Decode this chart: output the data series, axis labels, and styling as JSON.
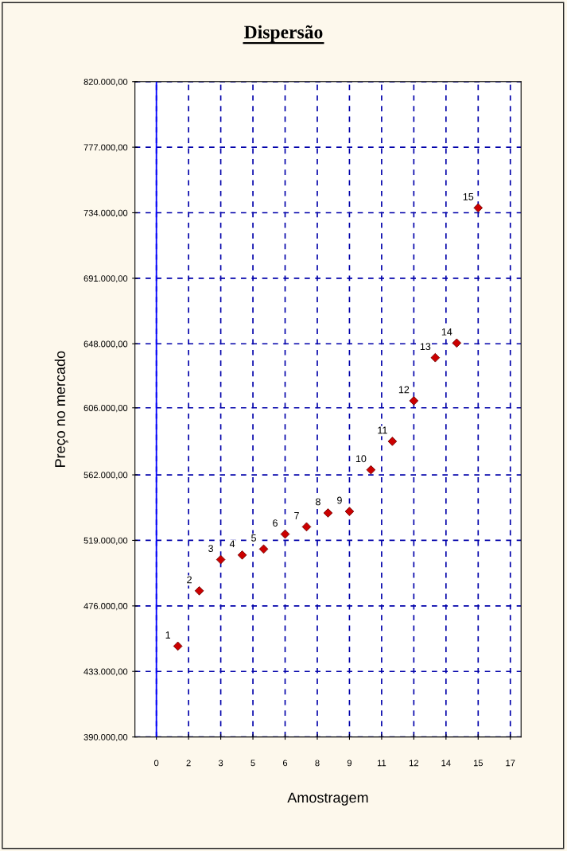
{
  "chart_data": {
    "type": "scatter",
    "title": "Dispersão",
    "xlabel": "Amostragem",
    "ylabel": "Preço no mercado",
    "x": [
      1,
      2,
      3,
      4,
      5,
      6,
      7,
      8,
      9,
      10,
      11,
      12,
      13,
      14,
      15
    ],
    "series": [
      {
        "color": "#cc0000",
        "values": [
          449600,
          485900,
          506400,
          509400,
          513300,
          523100,
          527900,
          537000,
          538000,
          565300,
          584000,
          610600,
          638900,
          648500,
          737200
        ]
      }
    ],
    "marker": "diamond",
    "grid": true,
    "xlim": [
      -1,
      17
    ],
    "xticks": [
      {
        "value": 0,
        "label": "0"
      },
      {
        "value": 1.5,
        "label": "2"
      },
      {
        "value": 3,
        "label": "3"
      },
      {
        "value": 4.5,
        "label": "5"
      },
      {
        "value": 6,
        "label": "6"
      },
      {
        "value": 7.5,
        "label": "8"
      },
      {
        "value": 9,
        "label": "9"
      },
      {
        "value": 10.5,
        "label": "11"
      },
      {
        "value": 12,
        "label": "12"
      },
      {
        "value": 13.5,
        "label": "14"
      },
      {
        "value": 15,
        "label": "15"
      },
      {
        "value": 16.5,
        "label": "17"
      }
    ],
    "ylim": [
      390000,
      820000
    ],
    "yticks": [
      {
        "value": 390000,
        "label": "390.000,00"
      },
      {
        "value": 433000,
        "label": "433.000,00"
      },
      {
        "value": 476000,
        "label": "476.000,00"
      },
      {
        "value": 519000,
        "label": "519.000,00"
      },
      {
        "value": 562000,
        "label": "562.000,00"
      },
      {
        "value": 606000,
        "label": "606.000,00"
      },
      {
        "value": 648000,
        "label": "648.000,00"
      },
      {
        "value": 691000,
        "label": "691.000,00"
      },
      {
        "value": 734000,
        "label": "734.000,00"
      },
      {
        "value": 777000,
        "label": "777.000,00"
      },
      {
        "value": 820000,
        "label": "820.000,00"
      }
    ],
    "ref_lines": [
      {
        "axis": "x",
        "value": 0,
        "label": null,
        "color": "#0000ff",
        "line_style": "solid"
      }
    ],
    "annotations": [
      {
        "text": "1",
        "x": 1,
        "y": 449600
      },
      {
        "text": "2",
        "x": 2,
        "y": 485900
      },
      {
        "text": "3",
        "x": 3,
        "y": 506400
      },
      {
        "text": "4",
        "x": 4,
        "y": 509400
      },
      {
        "text": "5",
        "x": 5,
        "y": 513300
      },
      {
        "text": "6",
        "x": 6,
        "y": 523100
      },
      {
        "text": "7",
        "x": 7,
        "y": 527900
      },
      {
        "text": "8",
        "x": 8,
        "y": 537000
      },
      {
        "text": "9",
        "x": 9,
        "y": 538000
      },
      {
        "text": "10",
        "x": 10,
        "y": 565300
      },
      {
        "text": "11",
        "x": 11,
        "y": 584000
      },
      {
        "text": "12",
        "x": 12,
        "y": 610600
      },
      {
        "text": "13",
        "x": 13,
        "y": 638900
      },
      {
        "text": "14",
        "x": 14,
        "y": 648500
      },
      {
        "text": "15",
        "x": 15,
        "y": 737200
      }
    ]
  }
}
